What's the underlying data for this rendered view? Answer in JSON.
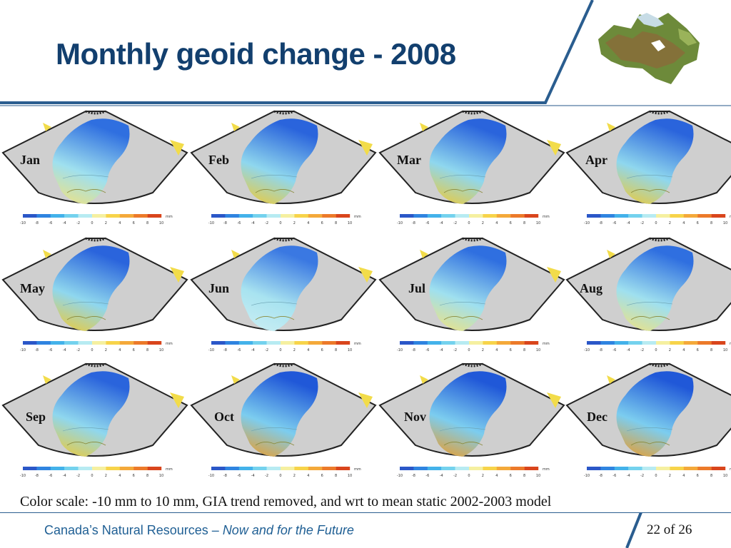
{
  "slide": {
    "title": "Monthly geoid change - 2008",
    "caption": "Color scale: -10 mm to 10 mm, GIA trend removed, and wrt to mean static 2002-2003 model",
    "footer_main": "Canada’s Natural Resources – ",
    "footer_italic": "Now and for the Future",
    "page_number": "22 of 26"
  },
  "panels": [
    {
      "month": "Jan",
      "scale": "cool"
    },
    {
      "month": "Feb",
      "scale": "warm"
    },
    {
      "month": "Mar",
      "scale": "warm"
    },
    {
      "month": "Apr",
      "scale": "warm"
    },
    {
      "month": "May",
      "scale": "warm"
    },
    {
      "month": "Jun",
      "scale": "mild"
    },
    {
      "month": "Jul",
      "scale": "cool"
    },
    {
      "month": "Aug",
      "scale": "cool"
    },
    {
      "month": "Sep",
      "scale": "warm"
    },
    {
      "month": "Oct",
      "scale": "hot"
    },
    {
      "month": "Nov",
      "scale": "hot"
    },
    {
      "month": "Dec",
      "scale": "hot"
    }
  ],
  "colorbar": {
    "ticks": [
      "-10",
      "-8",
      "-6",
      "-4",
      "-2",
      "0",
      "2",
      "4",
      "6",
      "8",
      "10"
    ],
    "unit": "mm"
  },
  "colors": {
    "title": "#123f6e",
    "accent_blue": "#1f5f94",
    "map_gray": "#cfcfcf"
  }
}
